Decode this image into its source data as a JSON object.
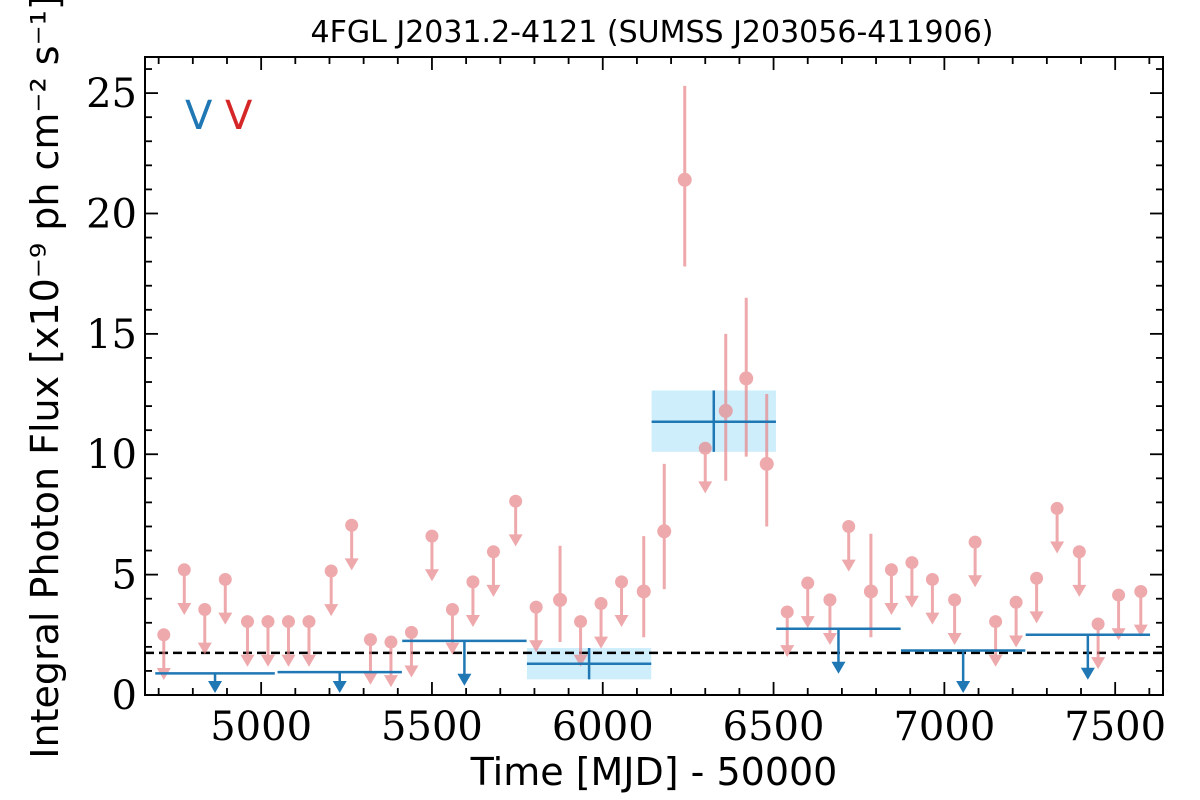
{
  "chart_data": {
    "type": "scatter",
    "title": "4FGL J2031.2-4121 (SUMSS J203056-411906)",
    "xlabel": "Time [MJD] - 50000",
    "ylabel": "Integral Photon Flux [x10⁻⁹ ph cm⁻² s⁻¹]",
    "xlim": [
      4660,
      7640
    ],
    "ylim": [
      0,
      26.5
    ],
    "x_ticks": [
      5000,
      5500,
      6000,
      6500,
      7000,
      7500
    ],
    "y_ticks": [
      0,
      5,
      10,
      15,
      20,
      25
    ],
    "grid": false,
    "legend": {
      "placement": "top-left",
      "entries": [
        {
          "symbol": "V",
          "color": "#1f77b4"
        },
        {
          "symbol": "V",
          "color": "#d62728"
        }
      ]
    },
    "reference_line": {
      "y": 1.75,
      "style": "dashed",
      "color": "#000000"
    },
    "colors": {
      "monthly": "#e8868a",
      "yearly": "#1f77b4",
      "band": "#cfeefc"
    },
    "series": [
      {
        "bin": "monthly",
        "detections": [
          {
            "x": 5875,
            "y": 3.95,
            "ylo": 2.2,
            "yhi": 6.2
          },
          {
            "x": 6120,
            "y": 4.3,
            "ylo": 2.4,
            "yhi": 6.6
          },
          {
            "x": 6180,
            "y": 6.8,
            "ylo": 4.4,
            "yhi": 9.6
          },
          {
            "x": 6240,
            "y": 21.4,
            "ylo": 17.8,
            "yhi": 25.3
          },
          {
            "x": 6360,
            "y": 11.8,
            "ylo": 8.9,
            "yhi": 15.0
          },
          {
            "x": 6420,
            "y": 13.15,
            "ylo": 9.9,
            "yhi": 16.5
          },
          {
            "x": 6480,
            "y": 9.6,
            "ylo": 7.0,
            "yhi": 12.5
          },
          {
            "x": 6785,
            "y": 4.3,
            "ylo": 2.4,
            "yhi": 6.7
          }
        ],
        "upper_limits": [
          {
            "x": 4715,
            "y": 2.5
          },
          {
            "x": 4775,
            "y": 5.2
          },
          {
            "x": 4835,
            "y": 3.55
          },
          {
            "x": 4895,
            "y": 4.8
          },
          {
            "x": 4960,
            "y": 3.05
          },
          {
            "x": 5020,
            "y": 3.05
          },
          {
            "x": 5080,
            "y": 3.05
          },
          {
            "x": 5140,
            "y": 3.05
          },
          {
            "x": 5205,
            "y": 5.15
          },
          {
            "x": 5265,
            "y": 7.05
          },
          {
            "x": 5320,
            "y": 2.3
          },
          {
            "x": 5380,
            "y": 2.2
          },
          {
            "x": 5440,
            "y": 2.6
          },
          {
            "x": 5500,
            "y": 6.6
          },
          {
            "x": 5560,
            "y": 3.55
          },
          {
            "x": 5620,
            "y": 4.7
          },
          {
            "x": 5680,
            "y": 5.95
          },
          {
            "x": 5745,
            "y": 8.05
          },
          {
            "x": 5805,
            "y": 3.65
          },
          {
            "x": 5935,
            "y": 3.05
          },
          {
            "x": 5995,
            "y": 3.8
          },
          {
            "x": 6055,
            "y": 4.7
          },
          {
            "x": 6300,
            "y": 10.25
          },
          {
            "x": 6540,
            "y": 3.45
          },
          {
            "x": 6600,
            "y": 4.65
          },
          {
            "x": 6665,
            "y": 3.95
          },
          {
            "x": 6720,
            "y": 7.0
          },
          {
            "x": 6845,
            "y": 5.2
          },
          {
            "x": 6905,
            "y": 5.5
          },
          {
            "x": 6965,
            "y": 4.8
          },
          {
            "x": 7030,
            "y": 3.95
          },
          {
            "x": 7090,
            "y": 6.35
          },
          {
            "x": 7150,
            "y": 3.05
          },
          {
            "x": 7210,
            "y": 3.85
          },
          {
            "x": 7270,
            "y": 4.85
          },
          {
            "x": 7330,
            "y": 7.75
          },
          {
            "x": 7395,
            "y": 5.95
          },
          {
            "x": 7450,
            "y": 2.95
          },
          {
            "x": 7510,
            "y": 4.15
          },
          {
            "x": 7575,
            "y": 4.3
          }
        ]
      },
      {
        "bin": "yearly",
        "detections": [
          {
            "x": 5960,
            "xerr": 182,
            "y": 1.3,
            "ylo": 0.65,
            "yhi": 1.95
          },
          {
            "x": 6325,
            "xerr": 182,
            "y": 11.35,
            "ylo": 10.1,
            "yhi": 12.65
          }
        ],
        "upper_limits": [
          {
            "x": 4865,
            "xerr": 175,
            "y": 0.9
          },
          {
            "x": 5230,
            "xerr": 182,
            "y": 0.95
          },
          {
            "x": 5595,
            "xerr": 182,
            "y": 2.25
          },
          {
            "x": 6690,
            "xerr": 182,
            "y": 2.75
          },
          {
            "x": 7055,
            "xerr": 182,
            "y": 1.85
          },
          {
            "x": 7420,
            "xerr": 182,
            "y": 2.5
          }
        ]
      }
    ]
  }
}
